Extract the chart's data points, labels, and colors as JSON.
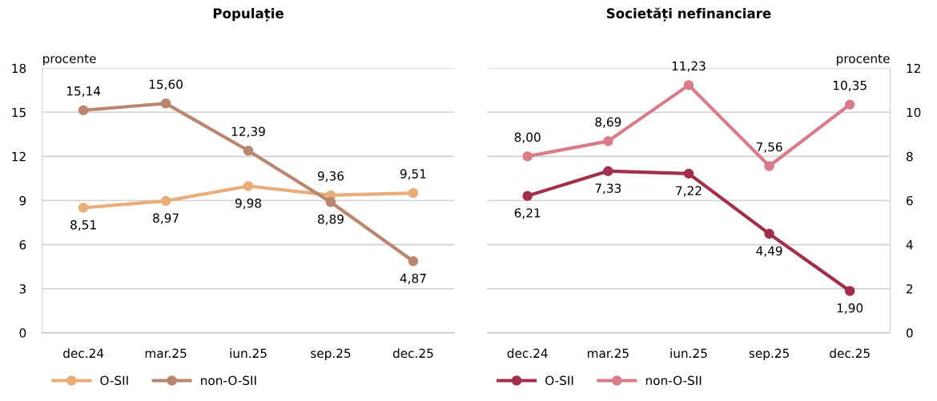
{
  "chart_data": [
    {
      "type": "line",
      "title": "Populație",
      "ylabel": "procente",
      "categories": [
        "dec.24",
        "mar.25",
        "iun.25",
        "sep.25",
        "dec.25"
      ],
      "ylim": [
        0,
        18
      ],
      "yticks": [
        0,
        3,
        6,
        9,
        12,
        15,
        18
      ],
      "grid": "y",
      "legend": "bottom",
      "marker": "circle",
      "line_style": "solid",
      "data_labels": true,
      "series": [
        {
          "name": "O-SII",
          "color": "#e8ad78",
          "values": [
            8.51,
            8.97,
            9.98,
            9.36,
            9.51
          ],
          "value_labels": [
            "8,51",
            "8,97",
            "9,98",
            "9,36",
            "9,51"
          ]
        },
        {
          "name": "non-O-SII",
          "color": "#b98670",
          "values": [
            15.14,
            15.6,
            12.39,
            8.89,
            4.87
          ],
          "value_labels": [
            "15,14",
            "15,60",
            "12,39",
            "8,89",
            "4,87"
          ]
        }
      ]
    },
    {
      "type": "line",
      "title": "Societăți nefinanciare",
      "ylabel": "procente",
      "categories": [
        "dec.24",
        "mar.25",
        "iun.25",
        "sep.25",
        "dec.25"
      ],
      "ylim": [
        0,
        12
      ],
      "yticks": [
        0,
        2,
        4,
        6,
        8,
        10,
        12
      ],
      "grid": "y",
      "legend": "bottom",
      "marker": "circle",
      "line_style": "solid",
      "data_labels": true,
      "series": [
        {
          "name": "O-SII",
          "color": "#a22f4a",
          "values": [
            6.21,
            7.33,
            7.22,
            4.49,
            1.9
          ],
          "value_labels": [
            "6,21",
            "7,33",
            "7,22",
            "4,49",
            "1,90"
          ]
        },
        {
          "name": "non-O-SII",
          "color": "#d97b89",
          "values": [
            8.0,
            8.69,
            11.23,
            7.56,
            10.35
          ],
          "value_labels": [
            "8,00",
            "8,69",
            "11,23",
            "7,56",
            "10,35"
          ]
        }
      ]
    }
  ]
}
